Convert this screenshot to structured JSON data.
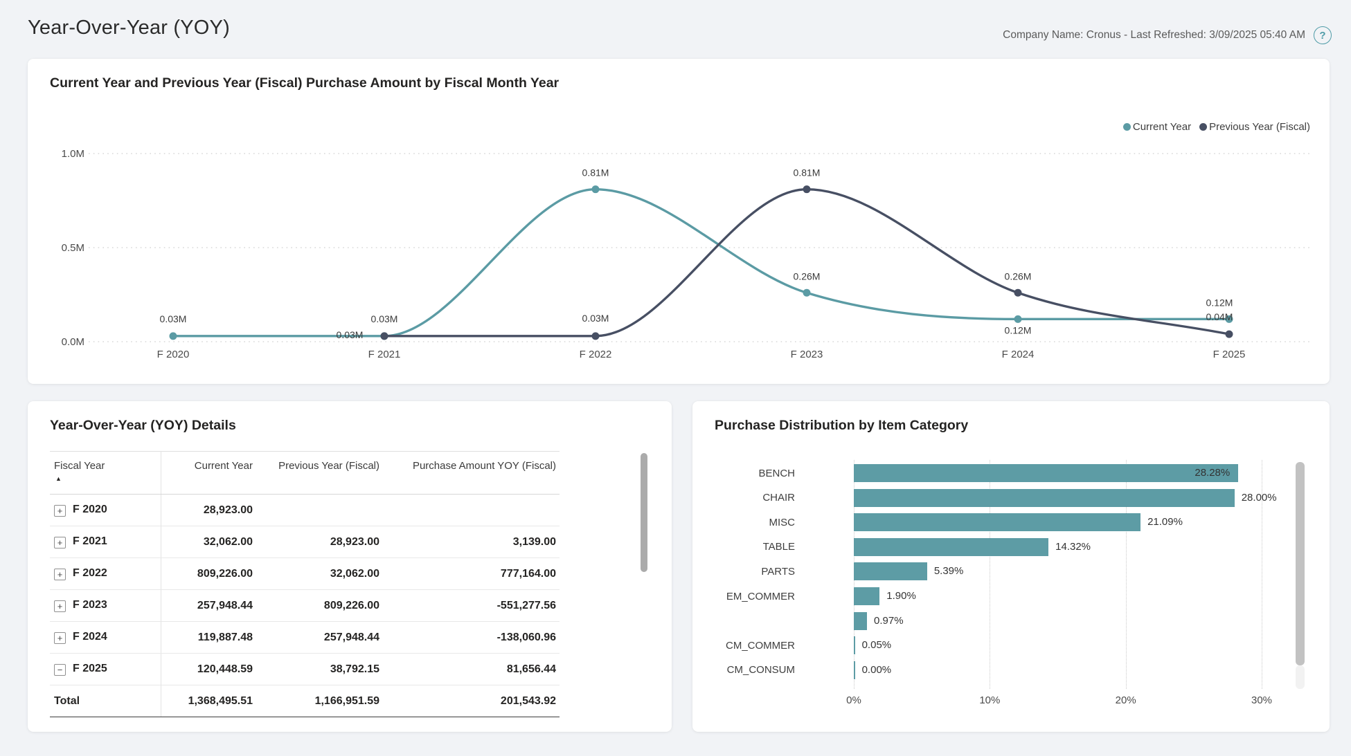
{
  "header": {
    "title": "Year-Over-Year (YOY)",
    "meta": "Company Name: Cronus - Last Refreshed: 3/09/2025 05:40 AM",
    "help_icon_glyph": "?"
  },
  "colors": {
    "accent_teal": "#5B9BA4",
    "dark_slate": "#474F63",
    "page_background": "#F1F3F6",
    "card_background": "#FFFFFF",
    "gridline": "#CFCFCF"
  },
  "chart_data": [
    {
      "type": "line",
      "title": "Current Year and Previous Year (Fiscal) Purchase Amount by Fiscal Month Year",
      "categories": [
        "F 2020",
        "F 2021",
        "F 2022",
        "F 2023",
        "F 2024",
        "F 2025"
      ],
      "series": [
        {
          "name": "Current Year",
          "color": "#5B9BA4",
          "values": [
            0.03,
            0.03,
            0.81,
            0.26,
            0.12,
            0.12
          ],
          "labels": [
            "0.03M",
            "0.03M",
            "0.81M",
            "0.26M",
            "0.12M",
            "0.12M"
          ]
        },
        {
          "name": "Previous Year (Fiscal)",
          "color": "#474F63",
          "values": [
            null,
            0.03,
            0.03,
            0.81,
            0.26,
            0.04
          ],
          "labels": [
            null,
            "0.03M",
            "0.03M",
            "0.81M",
            "0.26M",
            "0.04M"
          ]
        }
      ],
      "unit": "M",
      "ylim": [
        0,
        1.0
      ],
      "y_ticks": [
        "0.0M",
        "0.5M",
        "1.0M"
      ],
      "grid": "dotted-horizontal",
      "legend_position": "top-right",
      "curve": "smooth"
    },
    {
      "type": "bar",
      "orientation": "horizontal",
      "title": "Purchase Distribution by Item Category",
      "categories": [
        "BENCH",
        "CHAIR",
        "MISC",
        "TABLE",
        "PARTS",
        "EM_COMMER",
        "",
        "CM_COMMER",
        "CM_CONSUM"
      ],
      "values": [
        28.28,
        28.0,
        21.09,
        14.32,
        5.39,
        1.9,
        0.97,
        0.05,
        0.0
      ],
      "labels": [
        "28.28%",
        "28.00%",
        "21.09%",
        "14.32%",
        "5.39%",
        "1.90%",
        "0.97%",
        "0.05%",
        "0.00%"
      ],
      "label_placement": [
        "inside",
        "outside",
        "outside",
        "outside",
        "outside",
        "outside",
        "outside",
        "outside",
        "outside"
      ],
      "x_ticks": [
        "0%",
        "10%",
        "20%",
        "30%"
      ],
      "xlim": [
        0,
        30
      ],
      "bar_color": "#5D9CA5",
      "grid": "dotted-vertical"
    },
    {
      "type": "table",
      "title": "Year-Over-Year (YOY) Details",
      "columns": [
        "Fiscal Year",
        "Current Year",
        "Previous Year (Fiscal)",
        "Purchase Amount YOY (Fiscal)"
      ],
      "rows": [
        [
          "F 2020",
          "28,923.00",
          "",
          ""
        ],
        [
          "F 2021",
          "32,062.00",
          "28,923.00",
          "3,139.00"
        ],
        [
          "F 2022",
          "809,226.00",
          "32,062.00",
          "777,164.00"
        ],
        [
          "F 2023",
          "257,948.44",
          "809,226.00",
          "-551,277.56"
        ],
        [
          "F 2024",
          "119,887.48",
          "257,948.44",
          "-138,060.96"
        ],
        [
          "F 2025",
          "120,448.59",
          "38,792.15",
          "81,656.44"
        ],
        [
          "Total",
          "1,368,495.51",
          "1,166,951.59",
          "201,543.92"
        ]
      ]
    }
  ],
  "details_table": {
    "title": "Year-Over-Year (YOY) Details",
    "columns": {
      "c1": "Fiscal Year",
      "c2": "Current Year",
      "c3": "Previous Year (Fiscal)",
      "c4": "Purchase Amount YOY (Fiscal)"
    },
    "sort": {
      "column": "Fiscal Year",
      "direction": "ascending",
      "glyph": "▲"
    },
    "rows": [
      {
        "expand_glyph": "+",
        "fiscal_year": "F 2020",
        "current_year": "28,923.00",
        "previous_year": "",
        "yoy": ""
      },
      {
        "expand_glyph": "+",
        "fiscal_year": "F 2021",
        "current_year": "32,062.00",
        "previous_year": "28,923.00",
        "yoy": "3,139.00"
      },
      {
        "expand_glyph": "+",
        "fiscal_year": "F 2022",
        "current_year": "809,226.00",
        "previous_year": "32,062.00",
        "yoy": "777,164.00"
      },
      {
        "expand_glyph": "+",
        "fiscal_year": "F 2023",
        "current_year": "257,948.44",
        "previous_year": "809,226.00",
        "yoy": "-551,277.56"
      },
      {
        "expand_glyph": "+",
        "fiscal_year": "F 2024",
        "current_year": "119,887.48",
        "previous_year": "257,948.44",
        "yoy": "-138,060.96"
      },
      {
        "expand_glyph": "−",
        "fiscal_year": "F 2025",
        "current_year": "120,448.59",
        "previous_year": "38,792.15",
        "yoy": "81,656.44"
      }
    ],
    "total": {
      "label": "Total",
      "current_year": "1,368,495.51",
      "previous_year": "1,166,951.59",
      "yoy": "201,543.92"
    }
  }
}
